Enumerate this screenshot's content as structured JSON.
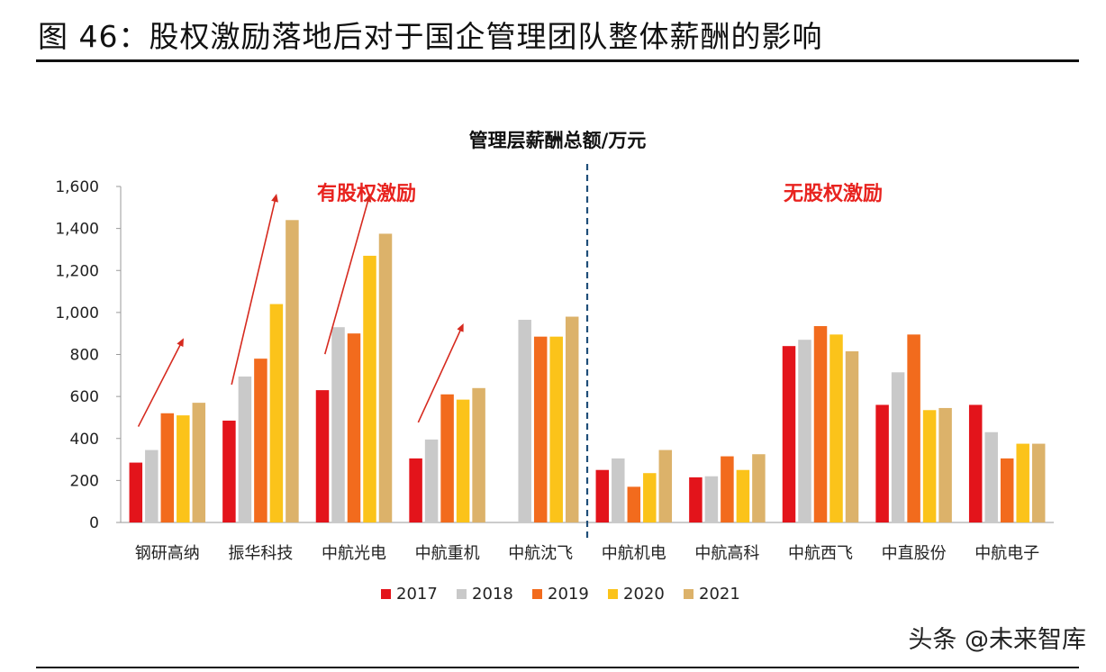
{
  "figure_title": "图 46：股权激励落地后对于国企管理团队整体薪酬的影响",
  "watermark": "头条 @未来智库",
  "colors": {
    "2017": "#e3141b",
    "2018": "#c9c9c9",
    "2019": "#f26b1d",
    "2020": "#fbc31a",
    "2021": "#dcb26a",
    "annotation": "#e8231f",
    "arrow": "#d62a1f",
    "divider": "#1f4e79"
  },
  "chart_data": {
    "type": "bar",
    "title": "管理层薪酬总额/万元",
    "ylim": [
      0,
      1600
    ],
    "yticks": [
      0,
      200,
      400,
      600,
      800,
      1000,
      1200,
      1400,
      1600
    ],
    "ytick_labels": [
      "0",
      "200",
      "400",
      "600",
      "800",
      "1,000",
      "1,200",
      "1,400",
      "1,600"
    ],
    "categories": [
      "钢研高纳",
      "振华科技",
      "中航光电",
      "中航重机",
      "中航沈飞",
      "中航机电",
      "中航高科",
      "中航西飞",
      "中直股份",
      "中航电子"
    ],
    "series": [
      {
        "name": "2017",
        "values": [
          285,
          485,
          630,
          305,
          null,
          250,
          215,
          840,
          560,
          560
        ]
      },
      {
        "name": "2018",
        "values": [
          345,
          695,
          930,
          395,
          965,
          305,
          220,
          870,
          715,
          430
        ]
      },
      {
        "name": "2019",
        "values": [
          520,
          780,
          900,
          610,
          885,
          170,
          315,
          935,
          895,
          305
        ]
      },
      {
        "name": "2020",
        "values": [
          510,
          1040,
          1270,
          585,
          885,
          235,
          250,
          895,
          535,
          375
        ]
      },
      {
        "name": "2021",
        "values": [
          570,
          1440,
          1375,
          640,
          980,
          345,
          325,
          815,
          545,
          375
        ]
      }
    ],
    "group_labels": [
      {
        "text": "有股权激励",
        "span": [
          0,
          4
        ]
      },
      {
        "text": "无股权激励",
        "span": [
          5,
          9
        ]
      }
    ],
    "divider_after_category": 4,
    "arrow_categories": [
      0,
      1,
      2,
      3
    ],
    "legend_position": "bottom",
    "grid": false
  }
}
